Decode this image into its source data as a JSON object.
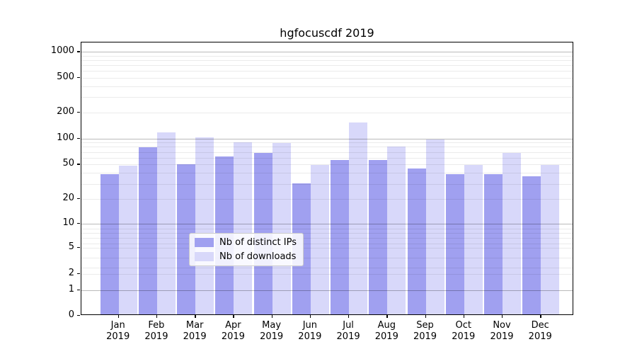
{
  "title": "hgfocuscdf 2019",
  "chart_data": {
    "type": "bar",
    "title": "hgfocuscdf 2019",
    "year_label": "2019",
    "categories": [
      "Jan",
      "Feb",
      "Mar",
      "Apr",
      "May",
      "Jun",
      "Jul",
      "Aug",
      "Sep",
      "Oct",
      "Nov",
      "Dec"
    ],
    "series": [
      {
        "name": "Nb of distinct IPs",
        "color": "#a0a0f0",
        "values": [
          37,
          76,
          49,
          60,
          66,
          29,
          54,
          54,
          43,
          37,
          37,
          35
        ]
      },
      {
        "name": "Nb of downloads",
        "color": "#d8d8fa",
        "values": [
          47,
          113,
          100,
          87,
          85,
          48,
          147,
          77,
          93,
          48,
          66,
          48
        ]
      }
    ],
    "xlabel": "",
    "ylabel": "",
    "y_scale": "asinh-log",
    "y_ticks": [
      0,
      1,
      2,
      5,
      10,
      20,
      50,
      100,
      200,
      500,
      1000
    ],
    "ylim": [
      0,
      1300
    ],
    "grid": true,
    "legend_position": "lower center"
  }
}
